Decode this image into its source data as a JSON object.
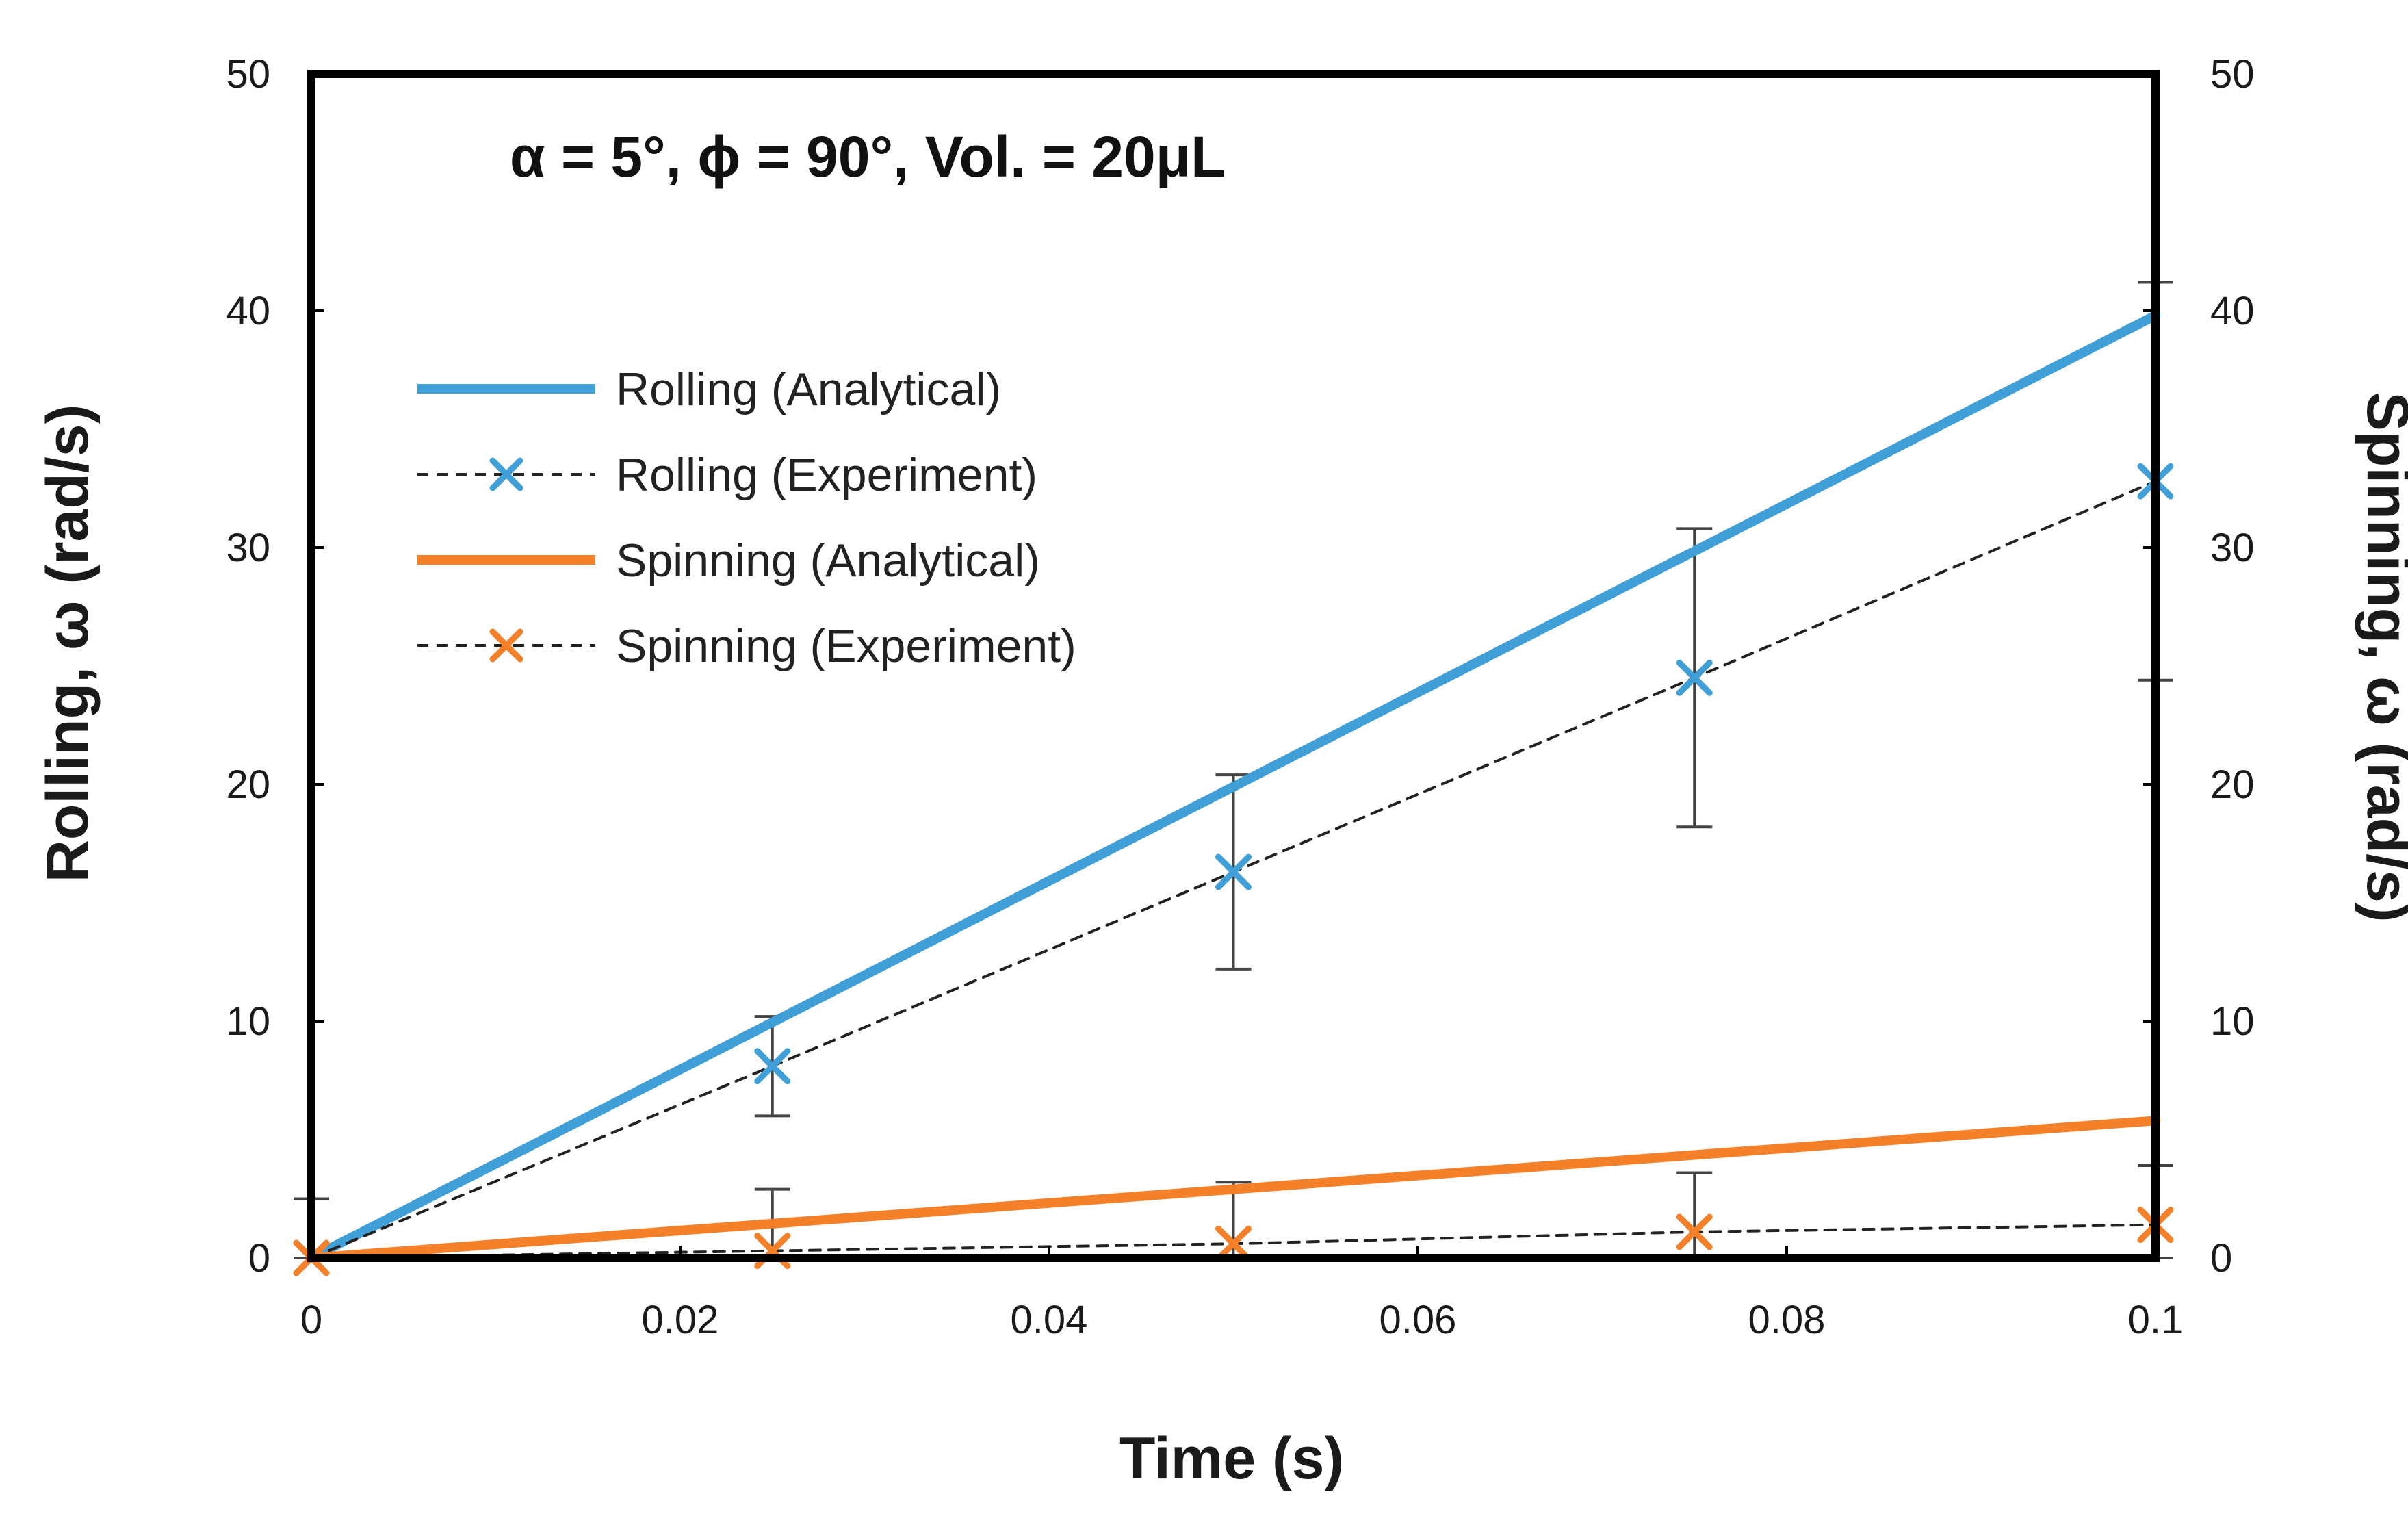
{
  "chart_data": {
    "type": "line",
    "title": "α  = 5°, ϕ  = 90°, Vol. = 20μL",
    "xlabel": "Time (s)",
    "ylabel": "Rolling, ω (rad/s)",
    "y2label": "Spinning, ω (rad/s)",
    "xlim": [
      0,
      0.1
    ],
    "ylim": [
      0,
      50
    ],
    "y2lim": [
      0,
      50
    ],
    "xticks": [
      "0",
      "0.02",
      "0.04",
      "0.06",
      "0.08",
      "0.1"
    ],
    "xtick_values": [
      0,
      0.02,
      0.04,
      0.06,
      0.08,
      0.1
    ],
    "yticks": [
      "0",
      "10",
      "20",
      "30",
      "40",
      "50"
    ],
    "ytick_values": [
      0,
      10,
      20,
      30,
      40,
      50
    ],
    "y2ticks": [
      "0",
      "10",
      "20",
      "30",
      "40",
      "50"
    ],
    "grid": false,
    "legend_position": "upper-left",
    "series": [
      {
        "name": "Rolling (Analytical)",
        "style": "solid",
        "color": "#3f9fd6",
        "marker": "none",
        "x": [
          0,
          0.1
        ],
        "y": [
          0,
          39.8
        ]
      },
      {
        "name": "Rolling (Experiment)",
        "style": "dashed",
        "color": "#3f9fd6",
        "marker": "x",
        "x": [
          0,
          0.025,
          0.05,
          0.075,
          0.1
        ],
        "y": [
          0,
          8.1,
          16.3,
          24.5,
          32.8
        ],
        "error": [
          2.5,
          2.1,
          4.1,
          6.3,
          8.4
        ]
      },
      {
        "name": "Spinning (Analytical)",
        "style": "solid",
        "color": "#f4802a",
        "marker": "none",
        "x": [
          0,
          0.1
        ],
        "y": [
          0,
          5.8
        ]
      },
      {
        "name": "Spinning (Experiment)",
        "style": "dashed",
        "color": "#f4802a",
        "marker": "x",
        "x": [
          0,
          0.025,
          0.05,
          0.075,
          0.1
        ],
        "y": [
          0,
          0.3,
          0.6,
          1.1,
          1.4
        ],
        "error": [
          0,
          2.6,
          2.6,
          2.5,
          2.5
        ]
      }
    ]
  }
}
